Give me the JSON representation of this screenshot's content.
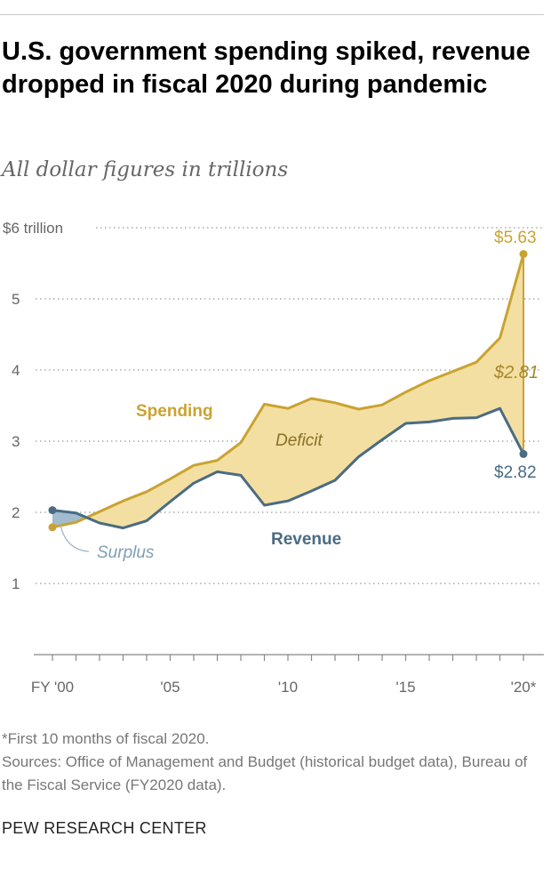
{
  "header": {
    "title": "U.S. government spending spiked, revenue dropped in fiscal 2020 during pandemic",
    "subtitle": "All dollar figures in trillions"
  },
  "footer": {
    "note": "*First 10 months of fiscal 2020.",
    "source": "Sources: Office of Management and Budget (historical budget data), Bureau of the Fiscal Service (FY2020 data).",
    "brand": "PEW RESEARCH CENTER"
  },
  "colors": {
    "spending": "#c9a331",
    "revenue": "#4a6b82",
    "deficit_fill": "#f3dfa2",
    "surplus_fill": "#8fb0c6",
    "surplus_text": "#7f9fb4",
    "grid": "#9a9a9a"
  },
  "chart_data": {
    "type": "line",
    "x": [
      2000,
      2001,
      2002,
      2003,
      2004,
      2005,
      2006,
      2007,
      2008,
      2009,
      2010,
      2011,
      2012,
      2013,
      2014,
      2015,
      2016,
      2017,
      2018,
      2019,
      2020
    ],
    "series": [
      {
        "name": "Spending",
        "values": [
          1.79,
          1.86,
          2.01,
          2.16,
          2.29,
          2.47,
          2.66,
          2.73,
          2.98,
          3.52,
          3.46,
          3.6,
          3.54,
          3.45,
          3.51,
          3.69,
          3.85,
          3.98,
          4.11,
          4.45,
          5.63
        ]
      },
      {
        "name": "Revenue",
        "values": [
          2.03,
          1.99,
          1.85,
          1.78,
          1.88,
          2.15,
          2.41,
          2.57,
          2.52,
          2.1,
          2.16,
          2.3,
          2.45,
          2.78,
          3.02,
          3.25,
          3.27,
          3.32,
          3.33,
          3.46,
          2.82
        ]
      }
    ],
    "y_ticks": [
      "$6 trillion",
      "5",
      "4",
      "3",
      "2",
      "1"
    ],
    "x_ticks": [
      {
        "value": 2000,
        "label": "FY '00"
      },
      {
        "value": 2005,
        "label": "'05"
      },
      {
        "value": 2010,
        "label": "'10"
      },
      {
        "value": 2015,
        "label": "'15"
      },
      {
        "value": 2020,
        "label": "'20*"
      }
    ],
    "ylim": [
      0,
      6
    ],
    "xlim": [
      2000,
      2020
    ],
    "annotations": {
      "spending": "Spending",
      "revenue": "Revenue",
      "deficit": "Deficit",
      "surplus": "Surplus",
      "spending_end": "$5.63",
      "revenue_end": "$2.82",
      "deficit_end": "$2.81"
    },
    "grid": true,
    "legend": "inline labels"
  }
}
